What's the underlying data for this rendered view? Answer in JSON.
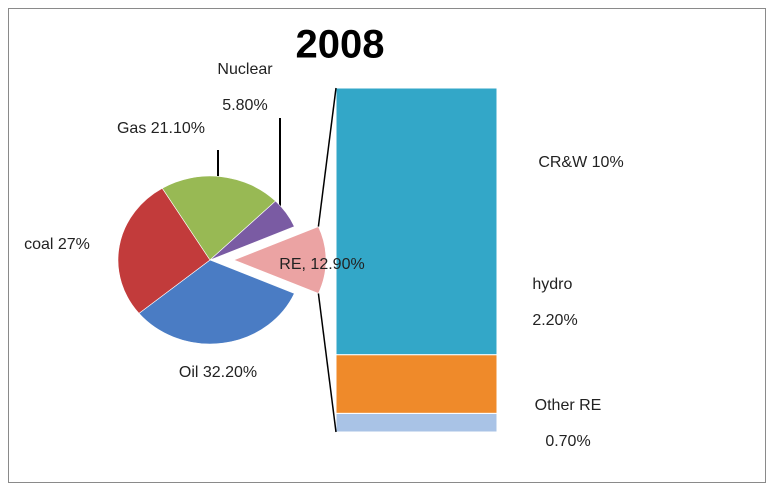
{
  "chart_data": {
    "type": "pie",
    "title": "2008",
    "values": [
      32.2,
      27,
      21.1,
      5.8,
      12.9
    ],
    "value_labels": [
      "Oil 32.20%",
      "coal 27%",
      "Gas 21.10%",
      "Nuclear\n5.80%",
      "RE, 12.90%"
    ],
    "colors": [
      "#4a7cc4",
      "#c23b3b",
      "#98b954",
      "#7a5ba3",
      "#eba3a3"
    ],
    "breakdown": {
      "type": "bar",
      "values": [
        10,
        2.2,
        0.7
      ],
      "value_labels": [
        "CR&W 10%",
        "hydro\n2.20%",
        "Other RE\n0.70%"
      ],
      "colors": [
        "#33a7c8",
        "#ef8a2a",
        "#a9c3e6"
      ]
    }
  }
}
